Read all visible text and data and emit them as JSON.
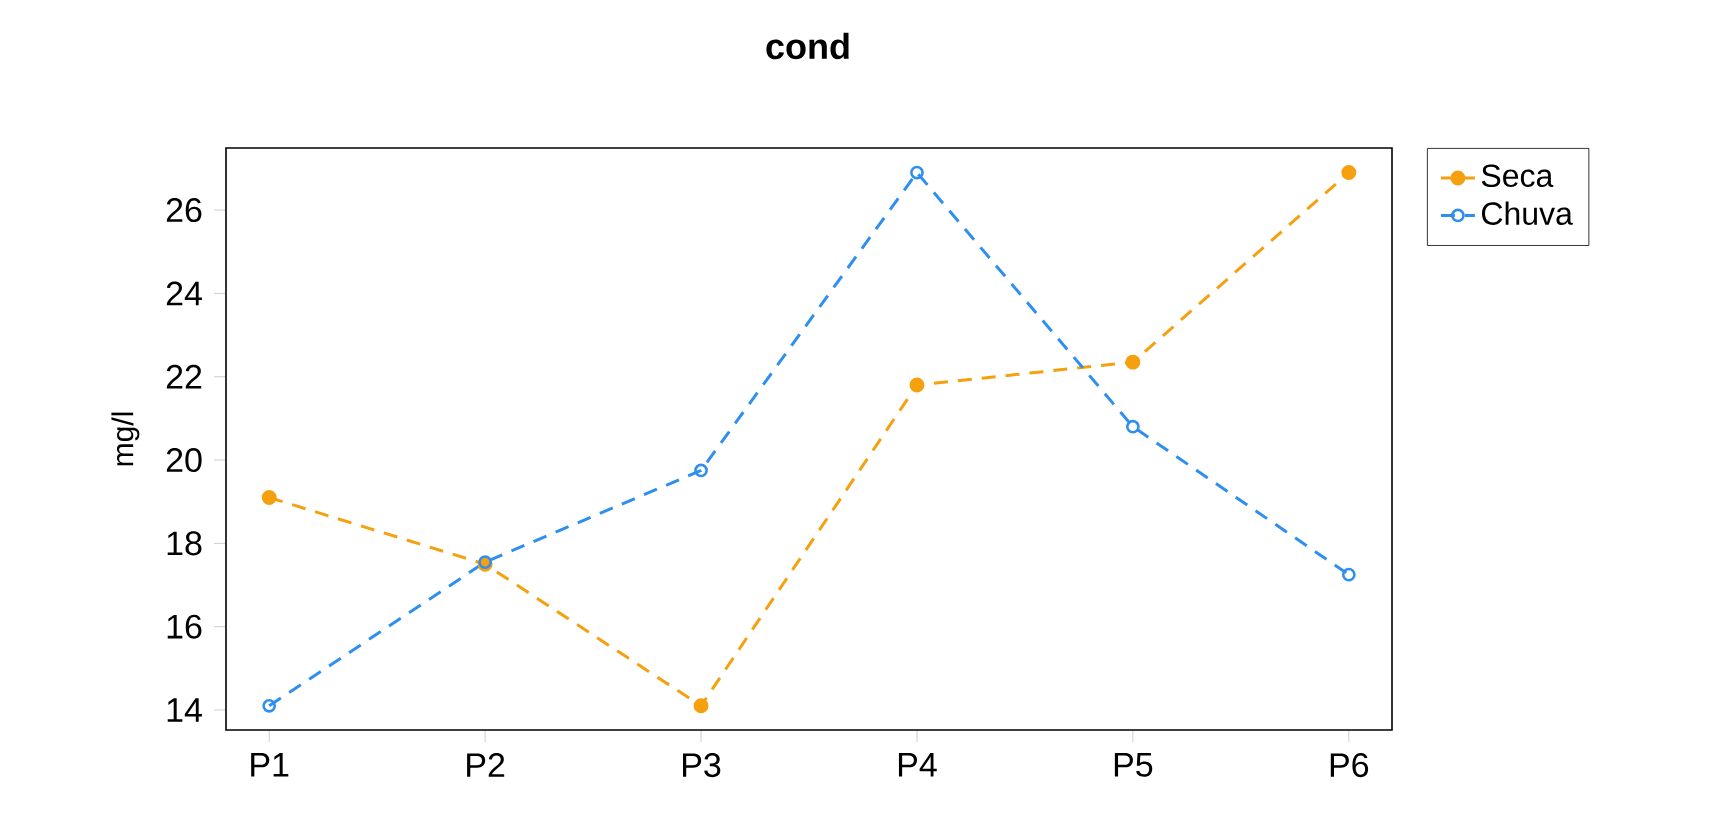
{
  "chart_data": {
    "type": "line",
    "title": "cond",
    "ylabel": "mg/l",
    "categories": [
      "P1",
      "P2",
      "P3",
      "P4",
      "P5",
      "P6"
    ],
    "series": [
      {
        "name": "Seca",
        "color": "#f5a00f",
        "marker": "circle",
        "values": [
          19.1,
          17.5,
          14.1,
          21.8,
          22.35,
          26.9
        ]
      },
      {
        "name": "Chuva",
        "color": "#2f8ff0",
        "marker": "circle-open",
        "values": [
          14.1,
          17.55,
          19.75,
          26.9,
          20.8,
          17.25
        ]
      }
    ],
    "ylim": [
      13.52,
      27.49
    ],
    "yticks": [
      14,
      16,
      18,
      20,
      22,
      24,
      26
    ],
    "line_style": "dashed",
    "legend": "top right",
    "grid": false
  }
}
